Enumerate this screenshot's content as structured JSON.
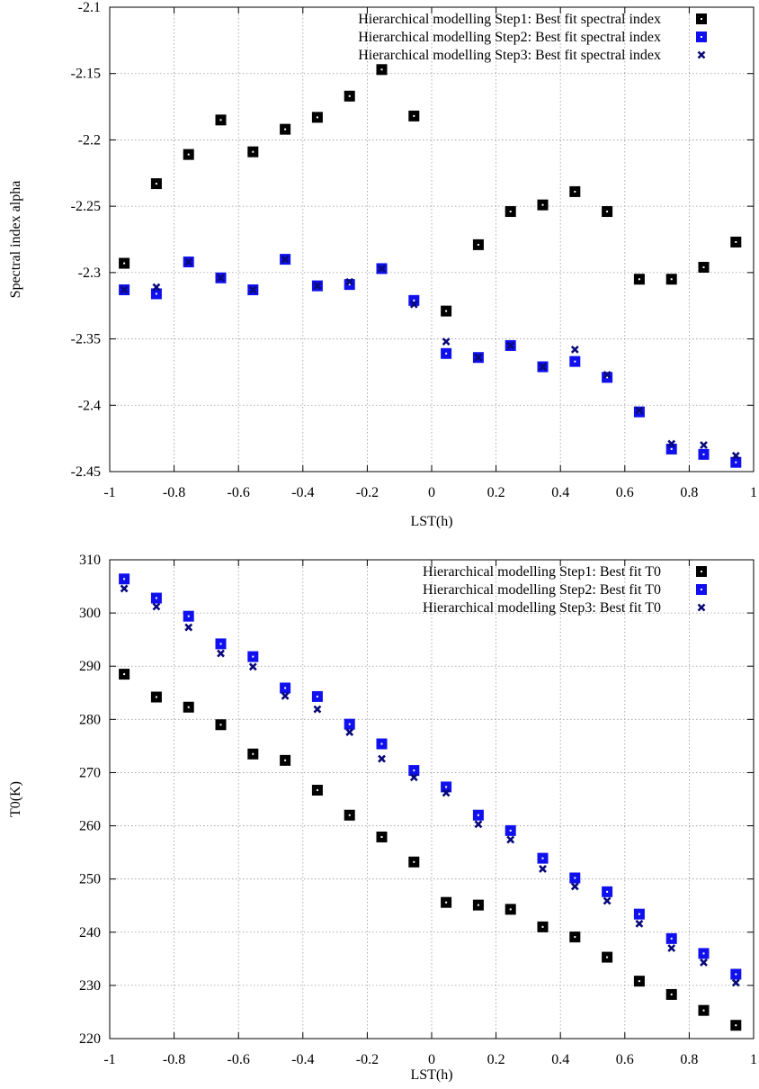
{
  "colors": {
    "step1": "#000000",
    "step2": "#1010ee",
    "step3": "#0a0a7a",
    "grid": "#999999",
    "frame": "#000000"
  },
  "chart_data": [
    {
      "type": "scatter",
      "xlabel": "LST(h)",
      "ylabel": "Spectral index alpha",
      "xlim": [
        -1,
        1
      ],
      "ylim": [
        -2.45,
        -2.1
      ],
      "xticks": [
        "-1",
        "-0.8",
        "-0.6",
        "-0.4",
        "-0.2",
        "0",
        "0.2",
        "0.4",
        "0.6",
        "0.8",
        "1"
      ],
      "yticks": [
        "-2.45",
        "-2.4",
        "-2.35",
        "-2.3",
        "-2.25",
        "-2.2",
        "-2.15",
        "-2.1"
      ],
      "grid": true,
      "legend_position": "top-right",
      "series": [
        {
          "name": "Hierarchical modelling Step1: Best fit spectral index",
          "marker": "square",
          "x": [
            -0.955,
            -0.855,
            -0.755,
            -0.655,
            -0.555,
            -0.455,
            -0.355,
            -0.255,
            -0.155,
            -0.055,
            0.045,
            0.145,
            0.245,
            0.345,
            0.445,
            0.545,
            0.645,
            0.745,
            0.845,
            0.945
          ],
          "y": [
            -2.293,
            -2.233,
            -2.211,
            -2.185,
            -2.209,
            -2.192,
            -2.183,
            -2.167,
            -2.147,
            -2.182,
            -2.329,
            -2.279,
            -2.254,
            -2.249,
            -2.239,
            -2.254,
            -2.305,
            -2.305,
            -2.296,
            -2.277
          ]
        },
        {
          "name": "Hierarchical modelling Step2: Best fit spectral index",
          "marker": "square",
          "x": [
            -0.955,
            -0.855,
            -0.755,
            -0.655,
            -0.555,
            -0.455,
            -0.355,
            -0.255,
            -0.155,
            -0.055,
            0.045,
            0.145,
            0.245,
            0.345,
            0.445,
            0.545,
            0.645,
            0.745,
            0.845,
            0.945
          ],
          "y": [
            -2.313,
            -2.316,
            -2.292,
            -2.304,
            -2.313,
            -2.29,
            -2.31,
            -2.309,
            -2.297,
            -2.321,
            -2.361,
            -2.364,
            -2.355,
            -2.371,
            -2.367,
            -2.379,
            -2.405,
            -2.433,
            -2.437,
            -2.443
          ]
        },
        {
          "name": "Hierarchical modelling Step3: Best fit spectral index",
          "marker": "cross",
          "x": [
            -0.955,
            -0.855,
            -0.755,
            -0.655,
            -0.555,
            -0.455,
            -0.355,
            -0.255,
            -0.155,
            -0.055,
            0.045,
            0.145,
            0.245,
            0.345,
            0.445,
            0.545,
            0.645,
            0.745,
            0.845,
            0.945
          ],
          "y": [
            -2.313,
            -2.311,
            -2.292,
            -2.304,
            -2.313,
            -2.29,
            -2.31,
            -2.307,
            -2.297,
            -2.324,
            -2.352,
            -2.364,
            -2.355,
            -2.371,
            -2.358,
            -2.377,
            -2.404,
            -2.429,
            -2.43,
            -2.438
          ]
        }
      ]
    },
    {
      "type": "scatter",
      "xlabel": "LST(h)",
      "ylabel": "T0(K)",
      "xlim": [
        -1,
        1
      ],
      "ylim": [
        220,
        310
      ],
      "xticks": [
        "-1",
        "-0.8",
        "-0.6",
        "-0.4",
        "-0.2",
        "0",
        "0.2",
        "0.4",
        "0.6",
        "0.8",
        "1"
      ],
      "yticks": [
        "220",
        "230",
        "240",
        "250",
        "260",
        "270",
        "280",
        "290",
        "300",
        "310"
      ],
      "grid": true,
      "legend_position": "top-right",
      "series": [
        {
          "name": "Hierarchical modelling Step1: Best fit T0",
          "marker": "square",
          "x": [
            -0.955,
            -0.855,
            -0.755,
            -0.655,
            -0.555,
            -0.455,
            -0.355,
            -0.255,
            -0.155,
            -0.055,
            0.045,
            0.145,
            0.245,
            0.345,
            0.445,
            0.545,
            0.645,
            0.745,
            0.845,
            0.945
          ],
          "y": [
            288.5,
            284.2,
            282.3,
            279.0,
            273.5,
            272.3,
            266.7,
            262.0,
            257.9,
            253.2,
            245.6,
            245.1,
            244.3,
            241.0,
            239.1,
            235.3,
            230.8,
            228.3,
            225.3,
            222.5
          ]
        },
        {
          "name": "Hierarchical modelling Step2: Best fit T0",
          "marker": "square",
          "x": [
            -0.955,
            -0.855,
            -0.755,
            -0.655,
            -0.555,
            -0.455,
            -0.355,
            -0.255,
            -0.155,
            -0.055,
            0.045,
            0.145,
            0.245,
            0.345,
            0.445,
            0.545,
            0.645,
            0.745,
            0.845,
            0.945
          ],
          "y": [
            306.4,
            302.8,
            299.4,
            294.2,
            291.8,
            285.9,
            284.3,
            279.1,
            275.4,
            270.4,
            267.3,
            262.0,
            259.1,
            253.9,
            250.2,
            247.6,
            243.4,
            238.8,
            236.0,
            232.1
          ]
        },
        {
          "name": "Hierarchical modelling Step3: Best fit T0",
          "marker": "cross",
          "x": [
            -0.955,
            -0.855,
            -0.755,
            -0.655,
            -0.555,
            -0.455,
            -0.355,
            -0.255,
            -0.155,
            -0.055,
            0.045,
            0.145,
            0.245,
            0.345,
            0.445,
            0.545,
            0.645,
            0.745,
            0.845,
            0.945
          ],
          "y": [
            304.6,
            301.2,
            297.3,
            292.4,
            289.9,
            284.4,
            281.9,
            277.6,
            272.6,
            269.1,
            266.2,
            260.3,
            257.4,
            251.9,
            248.6,
            245.9,
            241.6,
            237.0,
            234.3,
            230.5
          ]
        }
      ]
    }
  ]
}
